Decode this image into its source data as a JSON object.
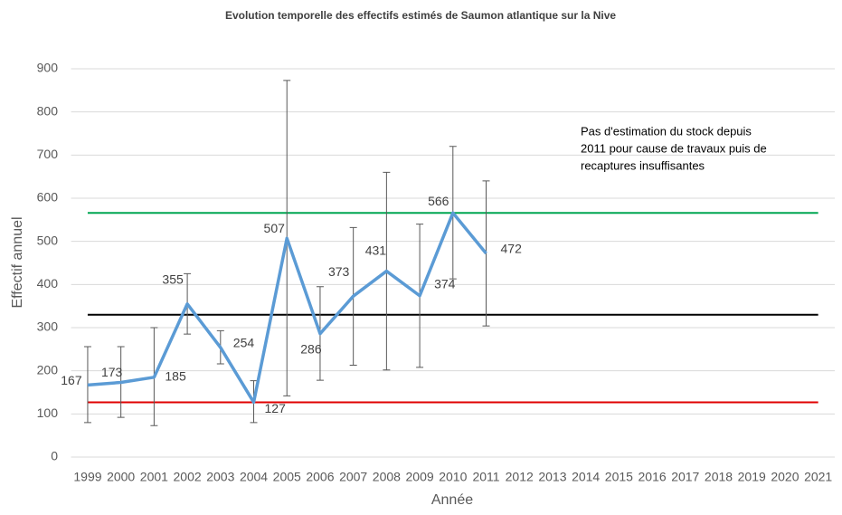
{
  "chart_data": {
    "type": "line",
    "title": "Evolution temporelle des effectifs estimés de Saumon atlantique sur la Nive",
    "x_label": "Année",
    "y_label": "Effectif annuel",
    "categories": [
      "1999",
      "2000",
      "2001",
      "2002",
      "2003",
      "2004",
      "2005",
      "2006",
      "2007",
      "2008",
      "2009",
      "2010",
      "2011",
      "2012",
      "2013",
      "2014",
      "2015",
      "2016",
      "2017",
      "2018",
      "2019",
      "2020",
      "2021"
    ],
    "series": [
      {
        "color": "#5b9bd5",
        "values": [
          167,
          173,
          185,
          355,
          254,
          127,
          507,
          286,
          373,
          431,
          374,
          566,
          472,
          null,
          null,
          null,
          null,
          null,
          null,
          null,
          null,
          null,
          null
        ],
        "lower": [
          80,
          92,
          73,
          285,
          216,
          80,
          142,
          178,
          213,
          202,
          208,
          413,
          304,
          null,
          null,
          null,
          null,
          null,
          null,
          null,
          null,
          null,
          null
        ],
        "upper": [
          256,
          256,
          300,
          425,
          293,
          177,
          873,
          395,
          532,
          660,
          540,
          720,
          640,
          null,
          null,
          null,
          null,
          null,
          null,
          null,
          null,
          null,
          null
        ]
      }
    ],
    "reference_lines": [
      {
        "value": 566,
        "color": "#00a651"
      },
      {
        "value": 330,
        "color": "#000000"
      },
      {
        "value": 127,
        "color": "#e00000"
      }
    ],
    "annotation": [
      "Pas d'estimation du stock depuis",
      "2011 pour cause de travaux puis de",
      "recaptures insuffisantes"
    ],
    "ylim": [
      0,
      900
    ],
    "yticks": [
      0,
      100,
      200,
      300,
      400,
      500,
      600,
      700,
      800,
      900
    ],
    "grid": true,
    "error_color": "#595959"
  }
}
